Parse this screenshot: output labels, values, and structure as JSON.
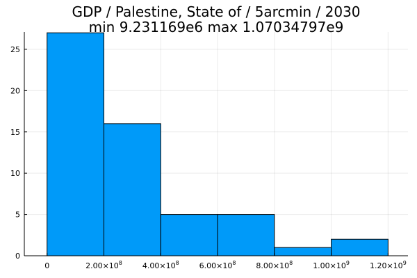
{
  "chart_data": {
    "type": "bar",
    "title": "GDP / Palestine, State of / 5arcmin / 2030",
    "subtitle": "min 9.231169e6  max 1.07034797e9",
    "xlabel": "",
    "ylabel": "",
    "bin_edges": [
      0,
      200000000,
      400000000,
      600000000,
      800000000,
      1000000000,
      1200000000
    ],
    "values": [
      27,
      16,
      5,
      5,
      1,
      2
    ],
    "xlim": [
      -80000000,
      1270000000
    ],
    "ylim": [
      0,
      27.1
    ],
    "x_ticks": [
      {
        "value": 0,
        "mantissa": "0",
        "exp": ""
      },
      {
        "value": 200000000,
        "mantissa": "2.00×10",
        "exp": "8"
      },
      {
        "value": 400000000,
        "mantissa": "4.00×10",
        "exp": "8"
      },
      {
        "value": 600000000,
        "mantissa": "6.00×10",
        "exp": "8"
      },
      {
        "value": 800000000,
        "mantissa": "8.00×10",
        "exp": "8"
      },
      {
        "value": 1000000000,
        "mantissa": "1.00×10",
        "exp": "9"
      },
      {
        "value": 1200000000,
        "mantissa": "1.20×10",
        "exp": "9"
      }
    ],
    "y_ticks": [
      0,
      5,
      10,
      15,
      20,
      25
    ],
    "grid": true,
    "legend": "none",
    "bar_color": "#009af9"
  }
}
